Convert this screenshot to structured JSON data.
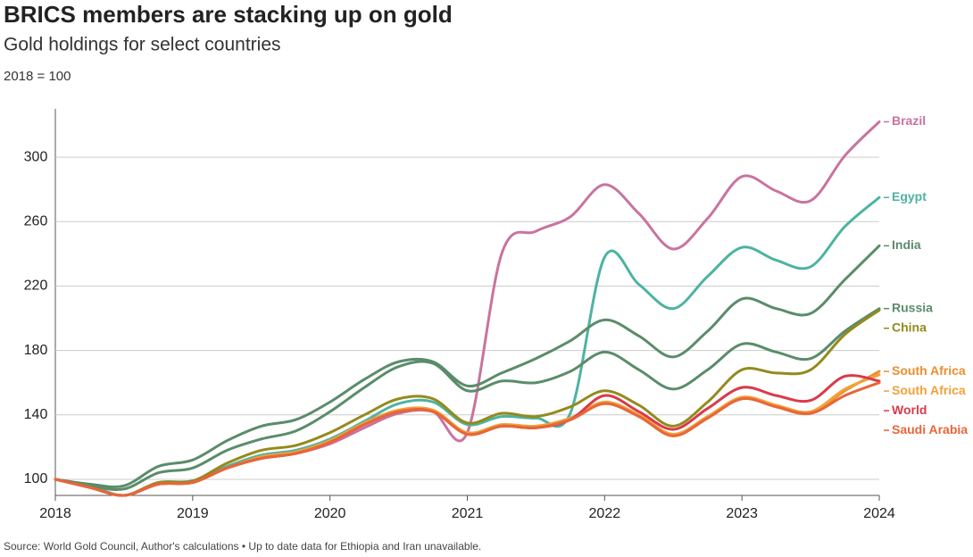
{
  "chart_data": {
    "type": "line",
    "title": "BRICS members are stacking up on gold",
    "subtitle": "Gold holdings for select countries",
    "note": "2018 = 100",
    "source": "Source: World Gold Council, Author's calculations • Up to date data for Ethiopia and Iran unavailable.",
    "x": [
      2018,
      2018.25,
      2018.5,
      2018.75,
      2019,
      2019.25,
      2019.5,
      2019.75,
      2020,
      2020.25,
      2020.5,
      2020.75,
      2021,
      2021.25,
      2021.5,
      2021.75,
      2022,
      2022.25,
      2022.5,
      2022.75,
      2023,
      2023.25,
      2023.5,
      2023.75,
      2024
    ],
    "xlim": [
      2018,
      2024
    ],
    "xticks": [
      2018,
      2019,
      2020,
      2021,
      2022,
      2023,
      2024
    ],
    "ylim": [
      90,
      330
    ],
    "yticks": [
      100,
      140,
      180,
      220,
      260,
      300
    ],
    "grid": true,
    "series": [
      {
        "name": "Brazil",
        "color": "#c9739f",
        "values": [
          100,
          95,
          90,
          97,
          99,
          107,
          113,
          116,
          122,
          132,
          141,
          142,
          129,
          240,
          254,
          263,
          283,
          265,
          243,
          262,
          288,
          279,
          273,
          301,
          322
        ]
      },
      {
        "name": "Egypt",
        "color": "#4db3a2",
        "values": [
          100,
          96,
          90,
          98,
          99,
          108,
          115,
          118,
          125,
          136,
          147,
          148,
          134,
          139,
          138,
          141,
          238,
          221,
          206,
          226,
          244,
          236,
          232,
          257,
          275
        ]
      },
      {
        "name": "India",
        "color": "#5a8c6a",
        "values": [
          100,
          97,
          96,
          108,
          112,
          124,
          133,
          137,
          148,
          162,
          173,
          173,
          158,
          166,
          175,
          186,
          199,
          189,
          176,
          192,
          212,
          206,
          203,
          224,
          245
        ]
      },
      {
        "name": "Russia",
        "color": "#5a8c6a",
        "values": [
          100,
          96,
          94,
          104,
          107,
          118,
          125,
          130,
          142,
          157,
          170,
          172,
          155,
          161,
          160,
          167,
          179,
          168,
          156,
          168,
          184,
          179,
          175,
          192,
          206
        ]
      },
      {
        "name": "China",
        "color": "#948a1c",
        "values": [
          100,
          95,
          90,
          98,
          99,
          110,
          118,
          121,
          129,
          140,
          150,
          150,
          135,
          141,
          139,
          145,
          155,
          146,
          133,
          148,
          168,
          166,
          168,
          190,
          205
        ]
      },
      {
        "name": "South Africa",
        "color": "#e8902e",
        "values": [
          100,
          95,
          90,
          97,
          98,
          107,
          113,
          116,
          123,
          134,
          142,
          142,
          128,
          133,
          132,
          137,
          147,
          139,
          127,
          138,
          150,
          145,
          141,
          155,
          167
        ]
      },
      {
        "name": "South Africa",
        "color": "#f0a238",
        "values": [
          100,
          95,
          90,
          97,
          98,
          107,
          114,
          117,
          124,
          135,
          143,
          143,
          129,
          134,
          133,
          138,
          148,
          140,
          128,
          139,
          151,
          146,
          142,
          156,
          165
        ]
      },
      {
        "name": "World",
        "color": "#d93a4a",
        "values": [
          100,
          95,
          90,
          97,
          98,
          107,
          113,
          116,
          123,
          134,
          142,
          142,
          128,
          133,
          132,
          137,
          152,
          142,
          131,
          144,
          157,
          152,
          149,
          164,
          161
        ]
      },
      {
        "name": "Saudi Arabia",
        "color": "#e8663a",
        "values": [
          100,
          95,
          90,
          97,
          98,
          107,
          113,
          116,
          123,
          134,
          142,
          142,
          128,
          133,
          132,
          137,
          147,
          139,
          127,
          138,
          150,
          145,
          141,
          152,
          160
        ]
      }
    ]
  }
}
